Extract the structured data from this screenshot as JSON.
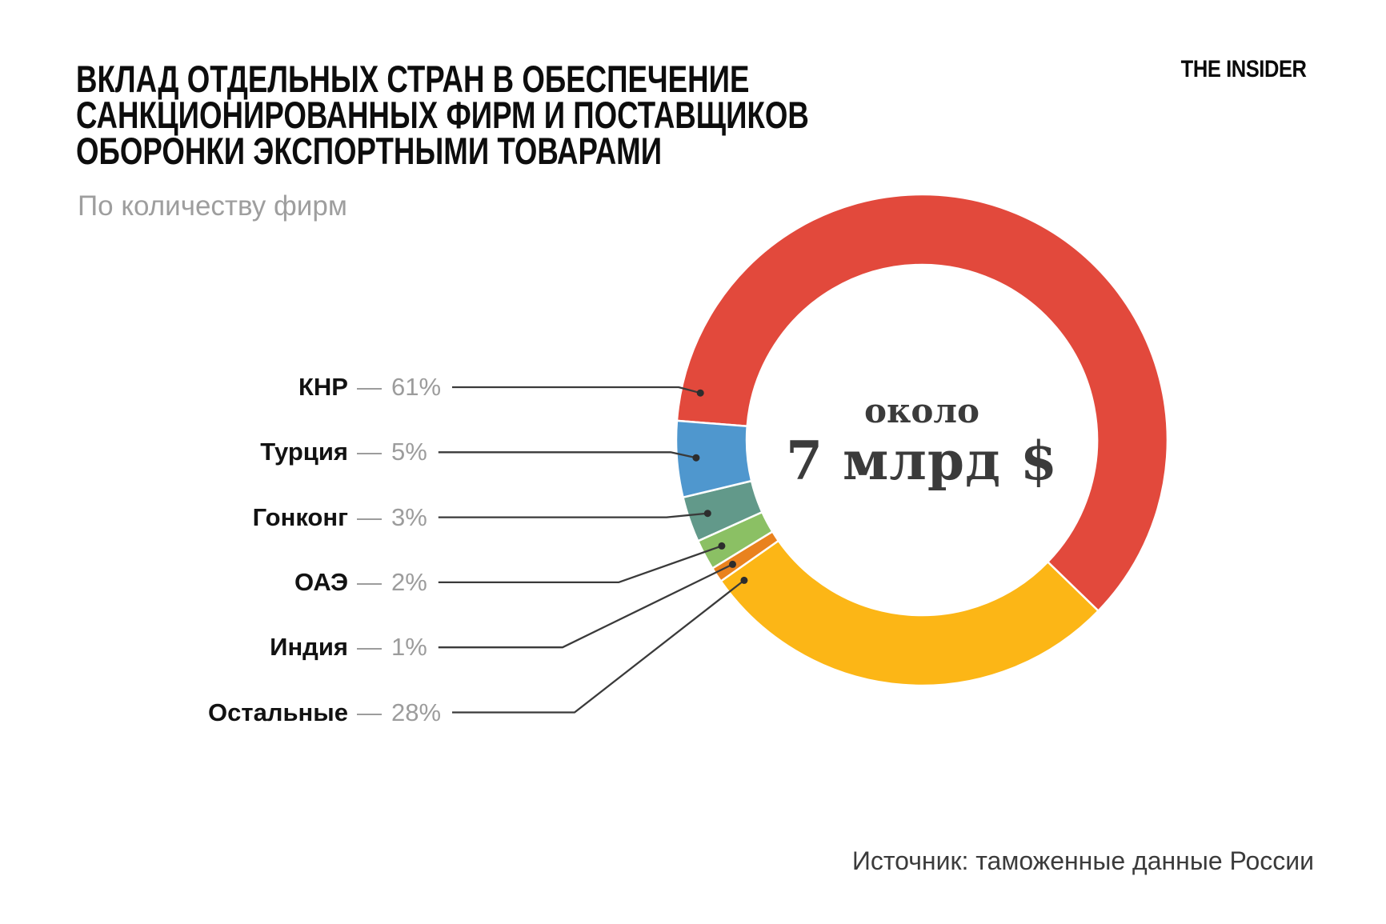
{
  "page": {
    "background": "#ffffff"
  },
  "header": {
    "title_lines": [
      "ВКЛАД ОТДЕЛЬНЫХ СТРАН В ОБЕСПЕЧЕНИЕ",
      "САНКЦИОНИРОВАННЫХ ФИРМ И ПОСТАВЩИКОВ",
      "ОБОРОНКИ ЭКСПОРТНЫМИ ТОВАРАМИ"
    ],
    "subtitle": "По количеству фирм",
    "brand": "THE INSIDER"
  },
  "chart_data": {
    "type": "pie",
    "donut": true,
    "title": "Вклад отдельных стран в обеспечение санкционированных фирм и поставщиков оборонки экспортными товарами",
    "subtitle": "По количеству фирм",
    "unit": "percent",
    "legend_position": "left",
    "categories": [
      "КНР",
      "Турция",
      "Гонконг",
      "ОАЭ",
      "Индия",
      "Остальные"
    ],
    "values": [
      61,
      5,
      3,
      2,
      1,
      28
    ],
    "segments": [
      {
        "label": "КНР",
        "value": 61,
        "display": "61%",
        "color": "#e2493c"
      },
      {
        "label": "Турция",
        "value": 5,
        "display": "5%",
        "color": "#4f97ce"
      },
      {
        "label": "Гонконг",
        "value": 3,
        "display": "3%",
        "color": "#62998a"
      },
      {
        "label": "ОАЭ",
        "value": 2,
        "display": "2%",
        "color": "#8bc064"
      },
      {
        "label": "Индия",
        "value": 1,
        "display": "1%",
        "color": "#e9821e"
      },
      {
        "label": "Остальные",
        "value": 28,
        "display": "28%",
        "color": "#fcb616"
      }
    ],
    "center_label": {
      "prefix": "около",
      "amount": "7 млрд $"
    }
  },
  "footer": {
    "source": "Источник: таможенные данные России"
  },
  "colors": {
    "separator": "#ffffff",
    "callout_line": "#3a3a3a",
    "callout_dot": "#2d2d2d",
    "muted_text": "#9c9c9c",
    "dark_text": "#3b3b3b"
  }
}
